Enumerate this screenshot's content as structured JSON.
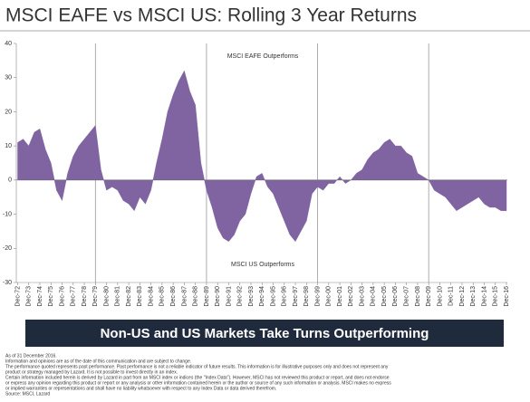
{
  "chart_data": {
    "type": "area",
    "title": "MSCI EAFE vs MSCI US: Rolling 3 Year Returns",
    "annotations": [
      "MSCI EAFE Outperforms",
      "MSCI US Outperforms"
    ],
    "color": "#8064a2",
    "x": [
      1972.92,
      1973.42,
      1973.92,
      1974.42,
      1974.92,
      1975.42,
      1975.92,
      1976.42,
      1976.92,
      1977.42,
      1977.92,
      1978.42,
      1978.92,
      1979.42,
      1979.92,
      1980.42,
      1980.92,
      1981.42,
      1981.92,
      1982.42,
      1982.92,
      1983.42,
      1983.92,
      1984.42,
      1984.92,
      1985.42,
      1985.92,
      1986.42,
      1986.92,
      1987.42,
      1987.92,
      1988.42,
      1988.92,
      1989.42,
      1989.92,
      1990.42,
      1990.92,
      1991.42,
      1991.92,
      1992.42,
      1992.92,
      1993.42,
      1993.92,
      1994.42,
      1994.92,
      1995.42,
      1995.92,
      1996.42,
      1996.92,
      1997.42,
      1997.92,
      1998.42,
      1998.92,
      1999.42,
      1999.92,
      2000.42,
      2000.92,
      2001.42,
      2001.92,
      2002.42,
      2002.92,
      2003.42,
      2003.92,
      2004.42,
      2004.92,
      2005.42,
      2005.92,
      2006.42,
      2006.92,
      2007.42,
      2007.92,
      2008.42,
      2008.92,
      2009.42,
      2009.92,
      2010.42,
      2010.92,
      2011.42,
      2011.92,
      2012.42,
      2012.92,
      2013.42,
      2013.92,
      2014.42,
      2014.92,
      2015.42,
      2015.92,
      2016.42,
      2016.92
    ],
    "values": [
      11,
      12,
      10,
      14,
      15,
      9,
      5,
      -3,
      -6,
      2,
      7,
      10,
      12,
      14,
      16,
      3,
      -3,
      -2,
      -3,
      -6,
      -7,
      -9,
      -5,
      -7,
      -3,
      5,
      12,
      20,
      25,
      29,
      32,
      26,
      22,
      5,
      -3,
      -8,
      -14,
      -17,
      -18,
      -16,
      -12,
      -10,
      -4,
      1,
      2,
      -2,
      -4,
      -8,
      -12,
      -16,
      -18,
      -15,
      -12,
      -4,
      -2,
      -3,
      -1,
      -1,
      1,
      -1,
      0,
      2,
      3,
      6,
      8,
      9,
      11,
      12,
      10,
      10,
      8,
      7,
      2,
      1,
      0,
      -3,
      -4,
      -5,
      -7,
      -9,
      -8,
      -7,
      -6,
      -5,
      -7,
      -8,
      -8,
      -9,
      -9
    ],
    "xlim": [
      1972.8,
      2017.0
    ],
    "xticks": [
      {
        "value": 1972.92,
        "label": "Dec-72"
      },
      {
        "value": 1973.92,
        "label": "Dec-73"
      },
      {
        "value": 1974.92,
        "label": "Dec-74"
      },
      {
        "value": 1975.92,
        "label": "Dec-75"
      },
      {
        "value": 1976.92,
        "label": "Dec-76"
      },
      {
        "value": 1977.92,
        "label": "Dec-77"
      },
      {
        "value": 1978.92,
        "label": "Dec-78"
      },
      {
        "value": 1979.92,
        "label": "Dec-79"
      },
      {
        "value": 1980.92,
        "label": "Dec-80"
      },
      {
        "value": 1981.92,
        "label": "Dec-81"
      },
      {
        "value": 1982.92,
        "label": "Dec-82"
      },
      {
        "value": 1983.92,
        "label": "Dec-83"
      },
      {
        "value": 1984.92,
        "label": "Dec-84"
      },
      {
        "value": 1985.92,
        "label": "Dec-85"
      },
      {
        "value": 1986.92,
        "label": "Dec-86"
      },
      {
        "value": 1987.92,
        "label": "Dec-87"
      },
      {
        "value": 1988.92,
        "label": "Dec-88"
      },
      {
        "value": 1989.92,
        "label": "Dec-89"
      },
      {
        "value": 1990.92,
        "label": "Dec-90"
      },
      {
        "value": 1991.92,
        "label": "Dec-91"
      },
      {
        "value": 1992.92,
        "label": "Dec-92"
      },
      {
        "value": 1993.92,
        "label": "Dec-93"
      },
      {
        "value": 1994.92,
        "label": "Dec-94"
      },
      {
        "value": 1995.92,
        "label": "Dec-95"
      },
      {
        "value": 1996.92,
        "label": "Dec-96"
      },
      {
        "value": 1997.92,
        "label": "Dec-97"
      },
      {
        "value": 1998.92,
        "label": "Dec-98"
      },
      {
        "value": 1999.92,
        "label": "Dec-99"
      },
      {
        "value": 2000.92,
        "label": "Dec-00"
      },
      {
        "value": 2001.92,
        "label": "Dec-01"
      },
      {
        "value": 2002.92,
        "label": "Dec-02"
      },
      {
        "value": 2003.92,
        "label": "Dec-03"
      },
      {
        "value": 2004.92,
        "label": "Dec-04"
      },
      {
        "value": 2005.92,
        "label": "Dec-05"
      },
      {
        "value": 2006.92,
        "label": "Dec-06"
      },
      {
        "value": 2007.92,
        "label": "Dec-07"
      },
      {
        "value": 2008.92,
        "label": "Dec-08"
      },
      {
        "value": 2009.92,
        "label": "Dec-09"
      },
      {
        "value": 2010.92,
        "label": "Dec-10"
      },
      {
        "value": 2011.92,
        "label": "Dec-11"
      },
      {
        "value": 2012.92,
        "label": "Dec-12"
      },
      {
        "value": 2013.92,
        "label": "Dec-13"
      },
      {
        "value": 2014.92,
        "label": "Dec-14"
      },
      {
        "value": 2015.92,
        "label": "Dec-15"
      },
      {
        "value": 2016.92,
        "label": "Dec-16"
      }
    ],
    "ylim": [
      -30,
      40
    ],
    "yticks": [
      -30,
      -20,
      -10,
      0,
      10,
      20,
      30,
      40
    ],
    "vlines": [
      1979.92,
      1989.92,
      1999.92,
      2009.92
    ]
  },
  "banner": "Non-US and US Markets Take Turns Outperforming",
  "footnotes": [
    "As of 31 December 2016.",
    "Information and opinions are as of the date of this communication and are subject to change.",
    "The performance quoted represents past performance. Past performance is not a reliable indicator of future results. This information is for illustrative purposes only and does not represent any",
    "product or strategy managed by Lazard. It is not possible to invest directly in an index.",
    "Certain information included herein is derived by Lazard in part from an MSCI index or indices (the \"Index Data\"). However, MSCI has not reviewed this product or report, and does not endorse",
    "or express any opinion regarding this product or report or any analysis or other information contained herein or the author or source of any such information or analysis. MSCI makes no express",
    "or implied warranties or representations and shall have no liability whatsoever with respect to any Index Data or data derived therefrom.",
    "Source: MSCI, Lazard"
  ]
}
